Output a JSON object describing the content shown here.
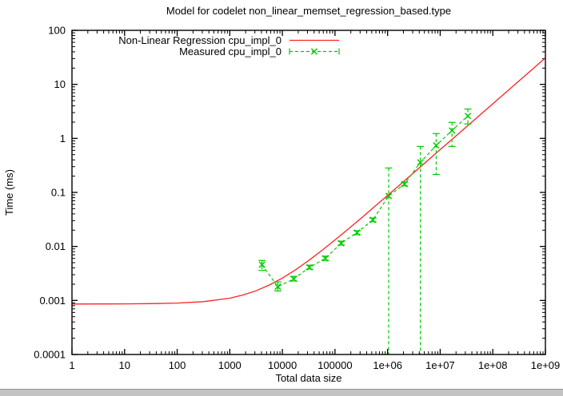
{
  "chart_data": {
    "type": "line",
    "title": "Model for codelet non_linear_memset_regression_based.type",
    "xlabel": "Total data size",
    "ylabel": "Time (ms)",
    "x_scale": "log",
    "y_scale": "log",
    "xlim": [
      1,
      1000000000
    ],
    "ylim": [
      0.0001,
      100
    ],
    "grid": false,
    "legend_position": "top-inside-center",
    "x_tick_labels": [
      "1",
      "10",
      "100",
      "1000",
      "10000",
      "100000",
      "1e+06",
      "1e+07",
      "1e+08",
      "1e+09"
    ],
    "y_tick_labels": [
      "100",
      "10",
      "1",
      "0.1",
      "0.01",
      "0.001",
      "0.0001"
    ],
    "colors": {
      "regression": "#ff2222",
      "measured": "#00cc00",
      "axis": "#000000",
      "background": "#ffffff"
    },
    "series": [
      {
        "name": "Non-Linear Regression cpu_impl_0",
        "kind": "regression-curve",
        "style": "solid",
        "color": "#ff2222",
        "x": [
          1,
          3.16,
          10,
          31.6,
          100,
          316,
          1000,
          1778,
          3162,
          5623,
          10000,
          17783,
          31623,
          56234,
          100000,
          177828,
          316228,
          562341,
          1000000,
          1778279,
          3162278,
          5623413,
          10000000,
          17782794,
          31622777,
          56234133,
          100000000,
          177827941,
          316227766,
          562341325,
          1000000000
        ],
        "y": [
          0.00086,
          0.000862,
          0.000865,
          0.000873,
          0.000895,
          0.000952,
          0.0011,
          0.00126,
          0.00151,
          0.00193,
          0.0026,
          0.0037,
          0.00548,
          0.0084,
          0.0132,
          0.0209,
          0.0336,
          0.0543,
          0.088,
          0.143,
          0.233,
          0.379,
          0.619,
          1.007,
          1.642,
          2.678,
          4.367,
          7.12,
          11.62,
          18.96,
          30.9
        ]
      },
      {
        "name": "Measured cpu_impl_0",
        "kind": "measured-points",
        "style": "dashed",
        "color": "#00cc00",
        "marker": "x",
        "x": [
          4096,
          8192,
          16384,
          32768,
          65536,
          131072,
          262144,
          524288,
          1048576,
          2097152,
          4194304,
          8388608,
          16777216,
          33554432
        ],
        "y": [
          0.0046,
          0.0018,
          0.0025,
          0.0041,
          0.006,
          0.0115,
          0.018,
          0.031,
          0.086,
          0.143,
          0.36,
          0.74,
          1.4,
          2.6
        ],
        "y_err_low": [
          0.0036,
          0.0015,
          0.0023,
          0.0038,
          0.0055,
          0.0106,
          0.0166,
          0.0286,
          0.0001,
          0.132,
          0.0001,
          0.215,
          0.71,
          1.85
        ],
        "y_err_high": [
          0.0055,
          0.0022,
          0.0028,
          0.0045,
          0.0066,
          0.0125,
          0.0195,
          0.0336,
          0.283,
          0.155,
          0.71,
          1.23,
          1.98,
          3.5
        ]
      }
    ]
  }
}
